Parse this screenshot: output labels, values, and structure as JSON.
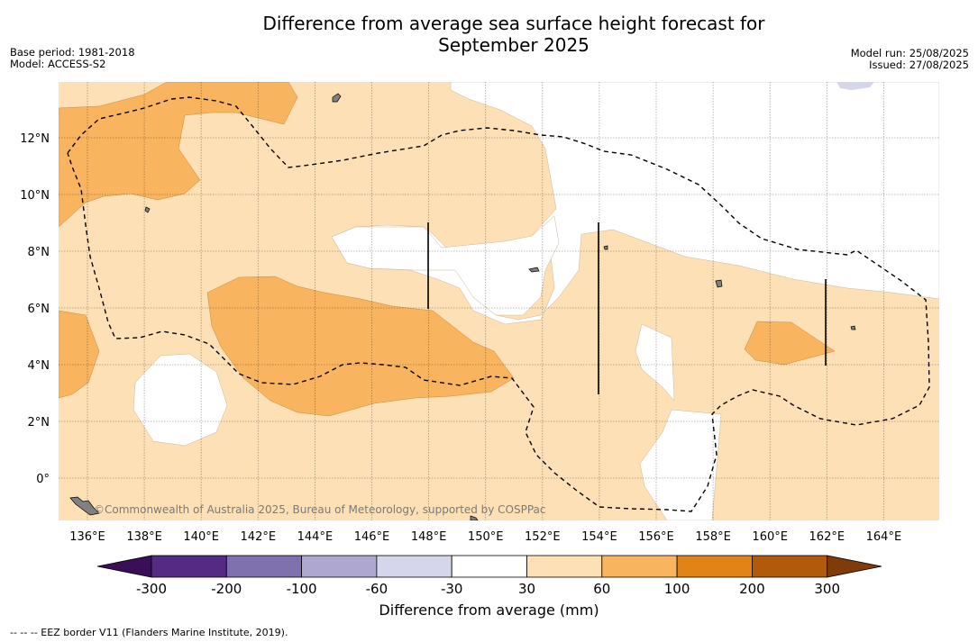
{
  "header": {
    "title_line1": "Difference from average sea surface height forecast for",
    "title_line2": "September 2025",
    "base_period": "Base period: 1981-2018",
    "model": "Model: ACCESS-S2",
    "model_run": "Model run: 25/08/2025",
    "issued": "Issued: 27/08/2025"
  },
  "map": {
    "lon_ticks": [
      "136°E",
      "138°E",
      "140°E",
      "142°E",
      "144°E",
      "146°E",
      "148°E",
      "150°E",
      "152°E",
      "154°E",
      "156°E",
      "158°E",
      "160°E",
      "162°E",
      "164°E"
    ],
    "lat_ticks": [
      "12°N",
      "10°N",
      "8°N",
      "6°N",
      "4°N",
      "2°N",
      "0°"
    ],
    "copyright": "©Commonwealth of Australia 2025, Bureau of Meteorology, supported by COSPPac",
    "colors": {
      "class_30_60": "#fde0b5",
      "class_60_100": "#f9b45f",
      "class_neg_30_60": "#d5d6eb",
      "land": "#808080"
    }
  },
  "colorbar": {
    "ticks": [
      "-300",
      "-200",
      "-100",
      "-60",
      "-30",
      "30",
      "60",
      "100",
      "200",
      "300"
    ],
    "colors": [
      "#3b0f58",
      "#552a84",
      "#7f70ae",
      "#aea8d1",
      "#d5d6eb",
      "#ffffff",
      "#fde0b5",
      "#f9b45f",
      "#e18316",
      "#b15a0b",
      "#7f3b08"
    ],
    "label": "Difference from average (mm)"
  },
  "footnote": "-- -- -- EEZ border V11 (Flanders Marine Institute, 2019)."
}
